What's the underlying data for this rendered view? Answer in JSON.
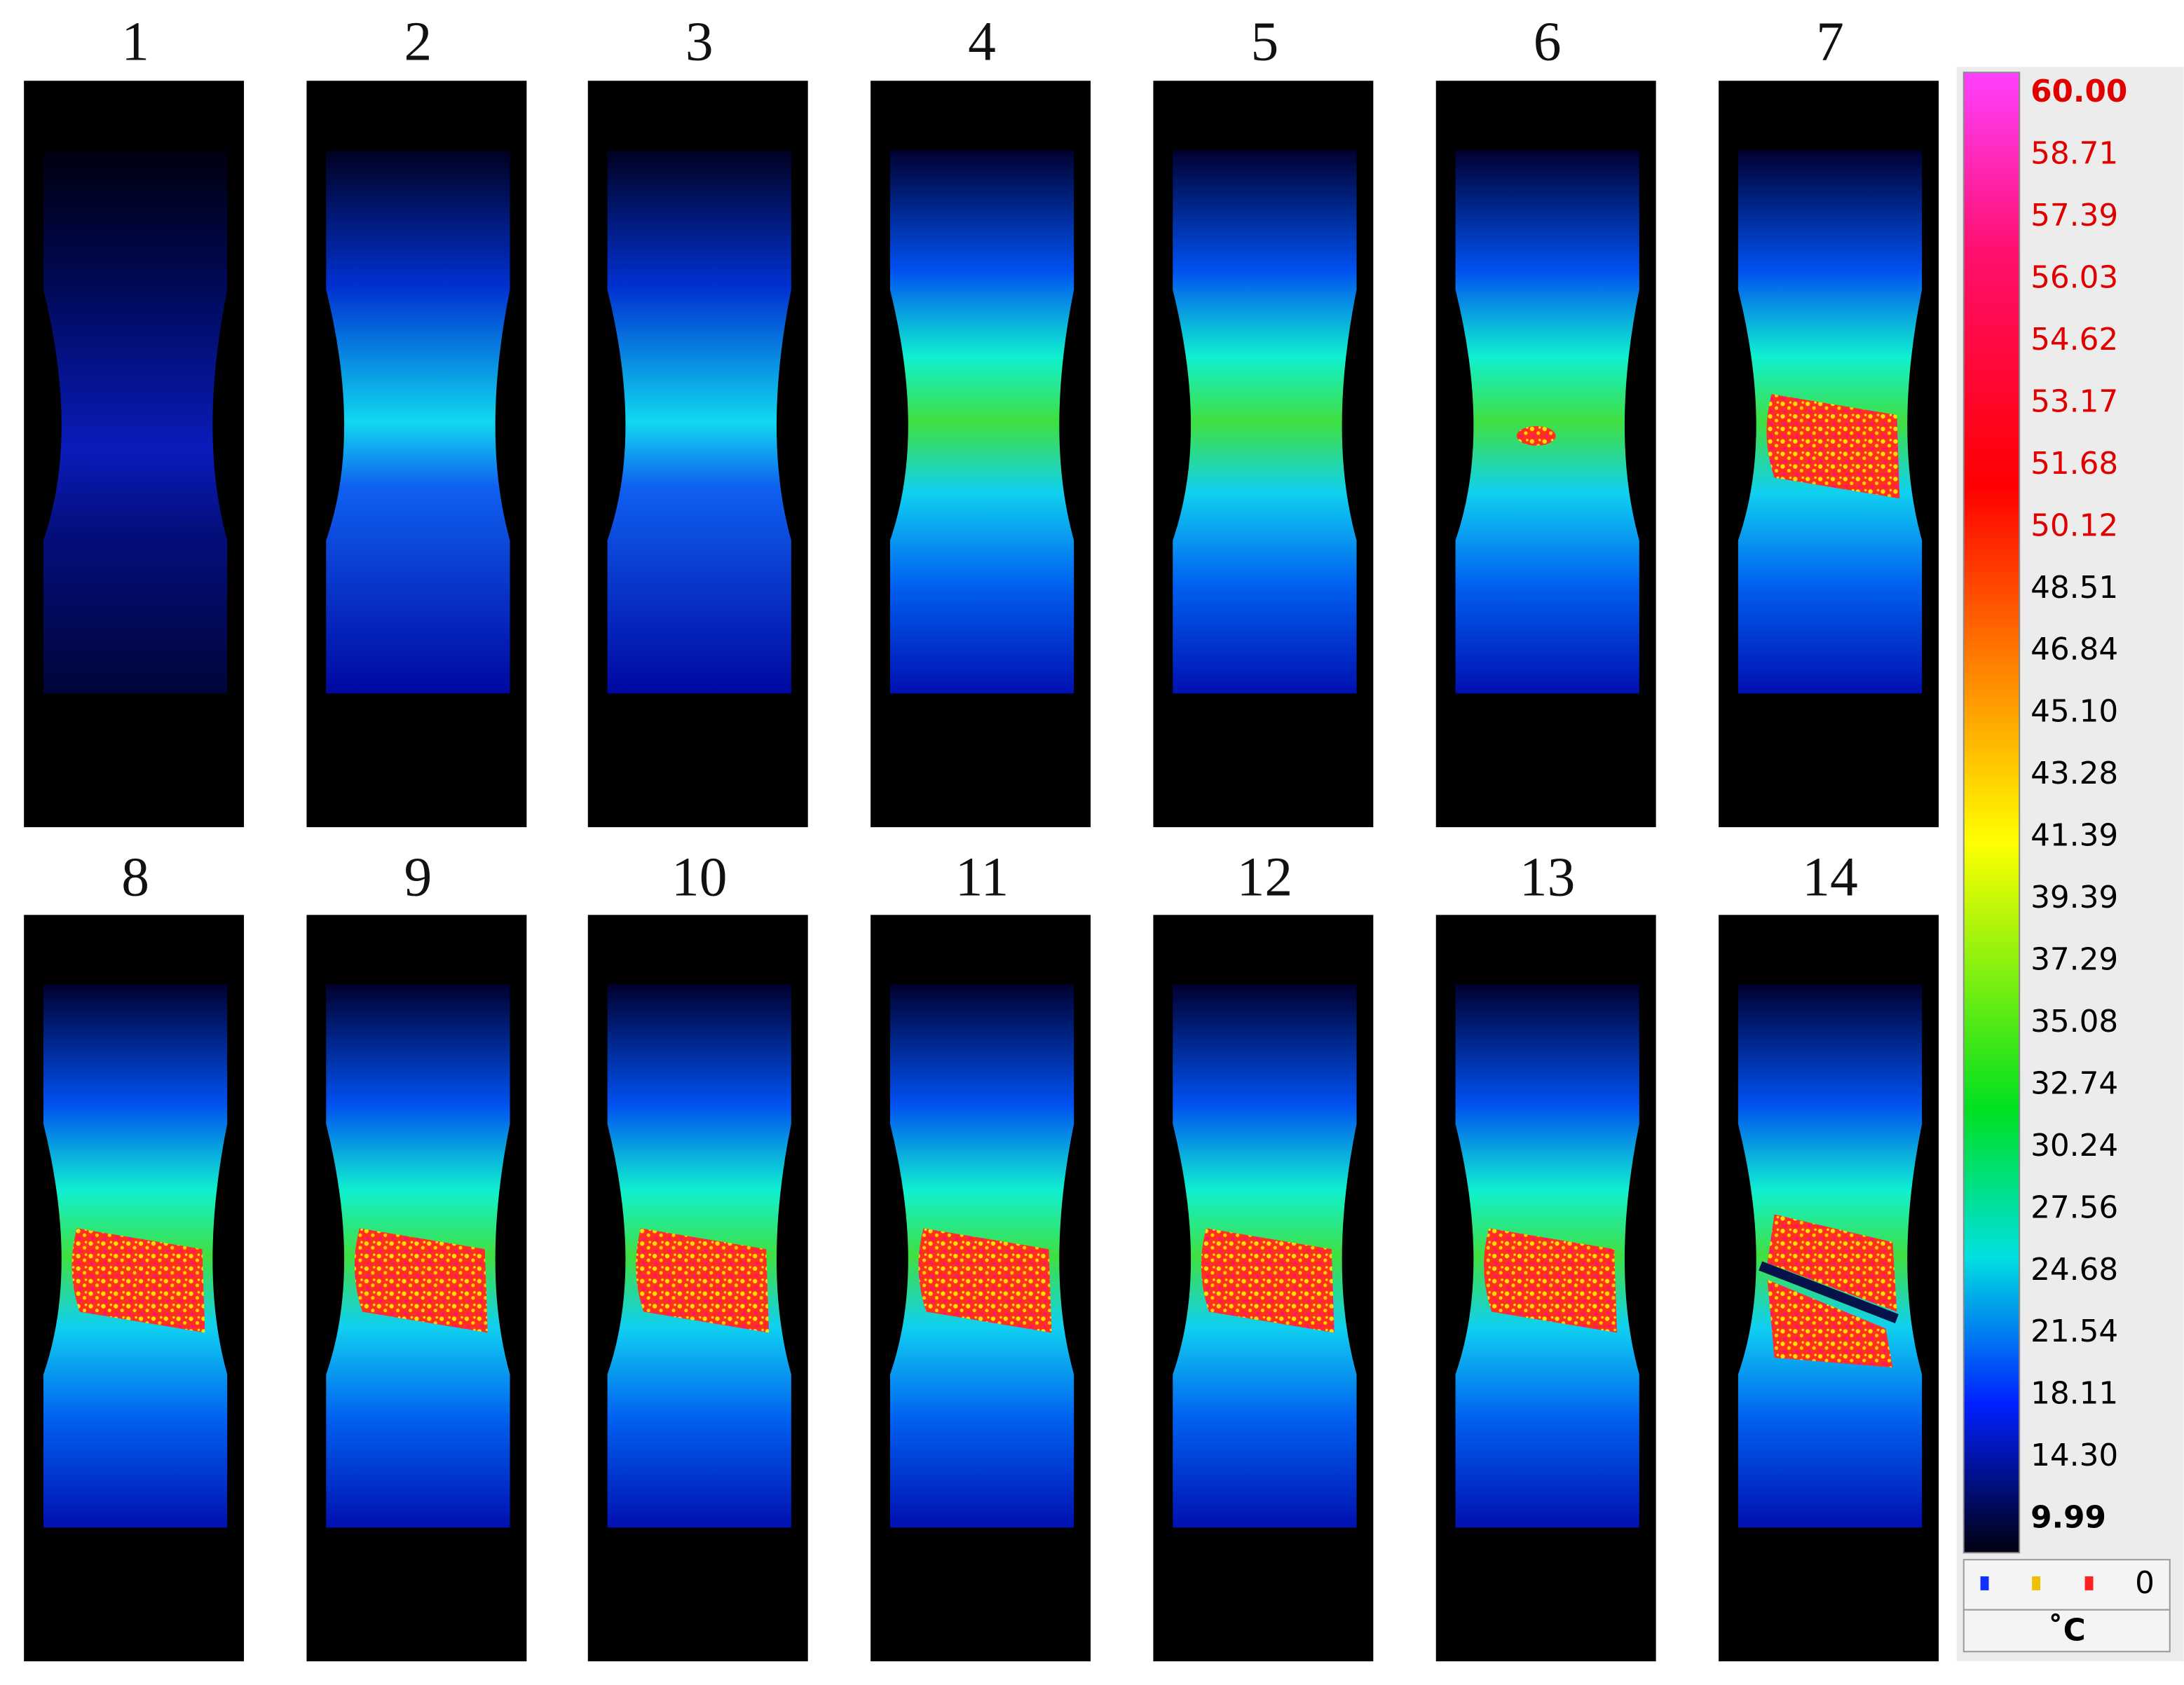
{
  "panels": {
    "labels": [
      "1",
      "2",
      "3",
      "4",
      "5",
      "6",
      "7",
      "8",
      "9",
      "10",
      "11",
      "12",
      "13",
      "14"
    ]
  },
  "colorbar": {
    "labels": [
      "60.00",
      "58.71",
      "57.39",
      "56.03",
      "54.62",
      "53.17",
      "51.68",
      "50.12",
      "48.51",
      "46.84",
      "45.10",
      "43.28",
      "41.39",
      "39.39",
      "37.29",
      "35.08",
      "32.74",
      "30.24",
      "27.56",
      "24.68",
      "21.54",
      "18.11",
      "14.30",
      "9.99"
    ],
    "counter": "0",
    "unit": "˚C"
  }
}
